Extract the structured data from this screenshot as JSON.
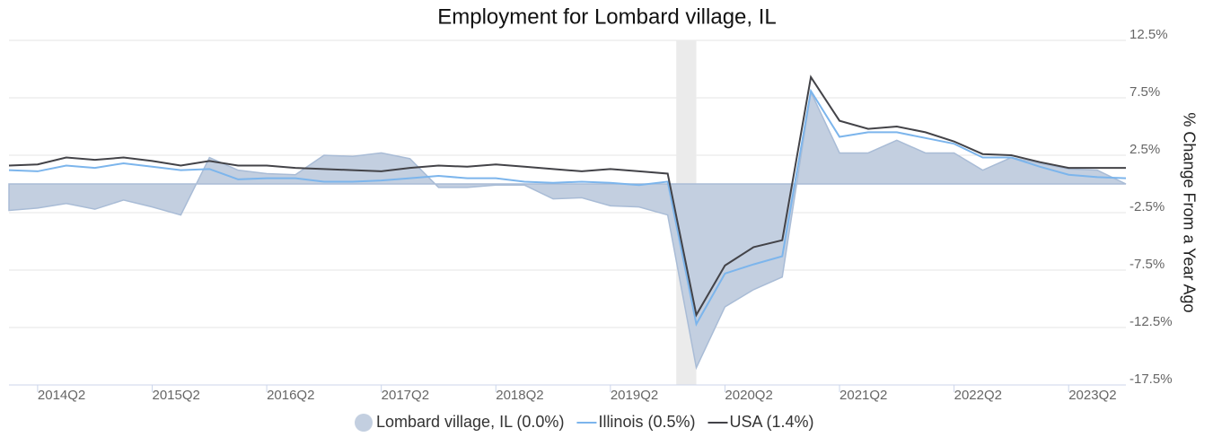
{
  "chart_data": {
    "type": "line",
    "title": "Employment for Lombard village, IL",
    "y_axis_label": "% Change From a Year Ago",
    "categories": [
      null,
      "2014Q2",
      null,
      null,
      null,
      "2015Q2",
      null,
      null,
      null,
      "2016Q2",
      null,
      null,
      null,
      "2017Q2",
      null,
      null,
      null,
      "2018Q2",
      null,
      null,
      null,
      "2019Q2",
      null,
      null,
      null,
      "2020Q2",
      null,
      null,
      null,
      "2021Q2",
      null,
      null,
      null,
      "2022Q2",
      null,
      null,
      null,
      "2023Q2",
      null,
      null
    ],
    "series": [
      {
        "name": "Lombard village, IL (0.0%)",
        "kind": "area",
        "color": "#c3cfe0",
        "values": [
          -2.3,
          -2.1,
          -1.7,
          -2.2,
          -1.4,
          -2.0,
          -2.7,
          2.3,
          1.2,
          0.9,
          0.8,
          2.5,
          2.4,
          2.7,
          2.2,
          -0.3,
          -0.3,
          -0.1,
          -0.1,
          -1.3,
          -1.2,
          -1.9,
          -2.0,
          -2.7,
          -16.0,
          -10.7,
          -9.2,
          -8.1,
          8.0,
          2.7,
          2.7,
          3.8,
          2.7,
          2.7,
          1.2,
          2.3,
          1.8,
          1.3,
          1.2,
          0.0
        ]
      },
      {
        "name": "Illinois (0.5%)",
        "kind": "line",
        "color": "#7cb5ec",
        "values": [
          1.2,
          1.1,
          1.6,
          1.4,
          1.8,
          1.5,
          1.2,
          1.3,
          0.4,
          0.5,
          0.5,
          0.2,
          0.2,
          0.3,
          0.5,
          0.7,
          0.5,
          0.5,
          0.2,
          0.1,
          0.2,
          0.1,
          -0.1,
          0.2,
          -12.2,
          -7.8,
          -7.0,
          -6.3,
          8.1,
          4.1,
          4.5,
          4.5,
          4.0,
          3.5,
          2.3,
          2.3,
          1.5,
          0.8,
          0.6,
          0.5
        ]
      },
      {
        "name": "USA (1.4%)",
        "kind": "line",
        "color": "#434348",
        "values": [
          1.6,
          1.7,
          2.3,
          2.1,
          2.3,
          2.0,
          1.6,
          2.0,
          1.6,
          1.6,
          1.4,
          1.3,
          1.2,
          1.1,
          1.4,
          1.6,
          1.5,
          1.7,
          1.5,
          1.3,
          1.1,
          1.3,
          1.1,
          0.9,
          -11.4,
          -7.1,
          -5.5,
          -4.9,
          9.3,
          5.5,
          4.8,
          5.0,
          4.5,
          3.7,
          2.6,
          2.5,
          1.9,
          1.4,
          1.4,
          1.4
        ]
      }
    ],
    "ylim": [
      -17.5,
      12.5
    ],
    "yticks": [
      {
        "value": 12.5,
        "label": "12.5%"
      },
      {
        "value": 7.5,
        "label": "7.5%"
      },
      {
        "value": 2.5,
        "label": "2.5%"
      },
      {
        "value": -2.5,
        "label": "-2.5%"
      },
      {
        "value": -7.5,
        "label": "-7.5%"
      },
      {
        "value": -12.5,
        "label": "-12.5%"
      },
      {
        "value": -17.5,
        "label": "-17.5%"
      }
    ],
    "grid": true
  }
}
